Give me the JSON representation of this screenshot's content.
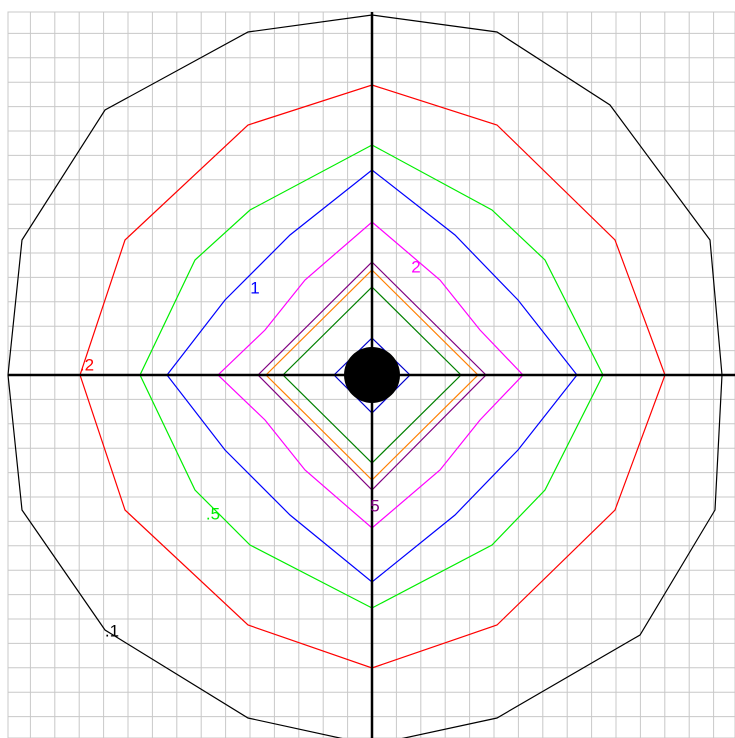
{
  "contours": [
    {
      "label": ".1",
      "color": "#000000"
    },
    {
      "label": ".2",
      "color": "#ff0000"
    },
    {
      "label": ".5",
      "color": "#00ee00"
    },
    {
      "label": "1",
      "color": "#0000ff"
    },
    {
      "label": "2",
      "color": "#ff00ff"
    },
    {
      "label": "5",
      "color": "#800080"
    },
    {
      "color": "#ff8000"
    },
    {
      "color": "#008000"
    },
    {
      "color": "#0000cc"
    }
  ]
}
